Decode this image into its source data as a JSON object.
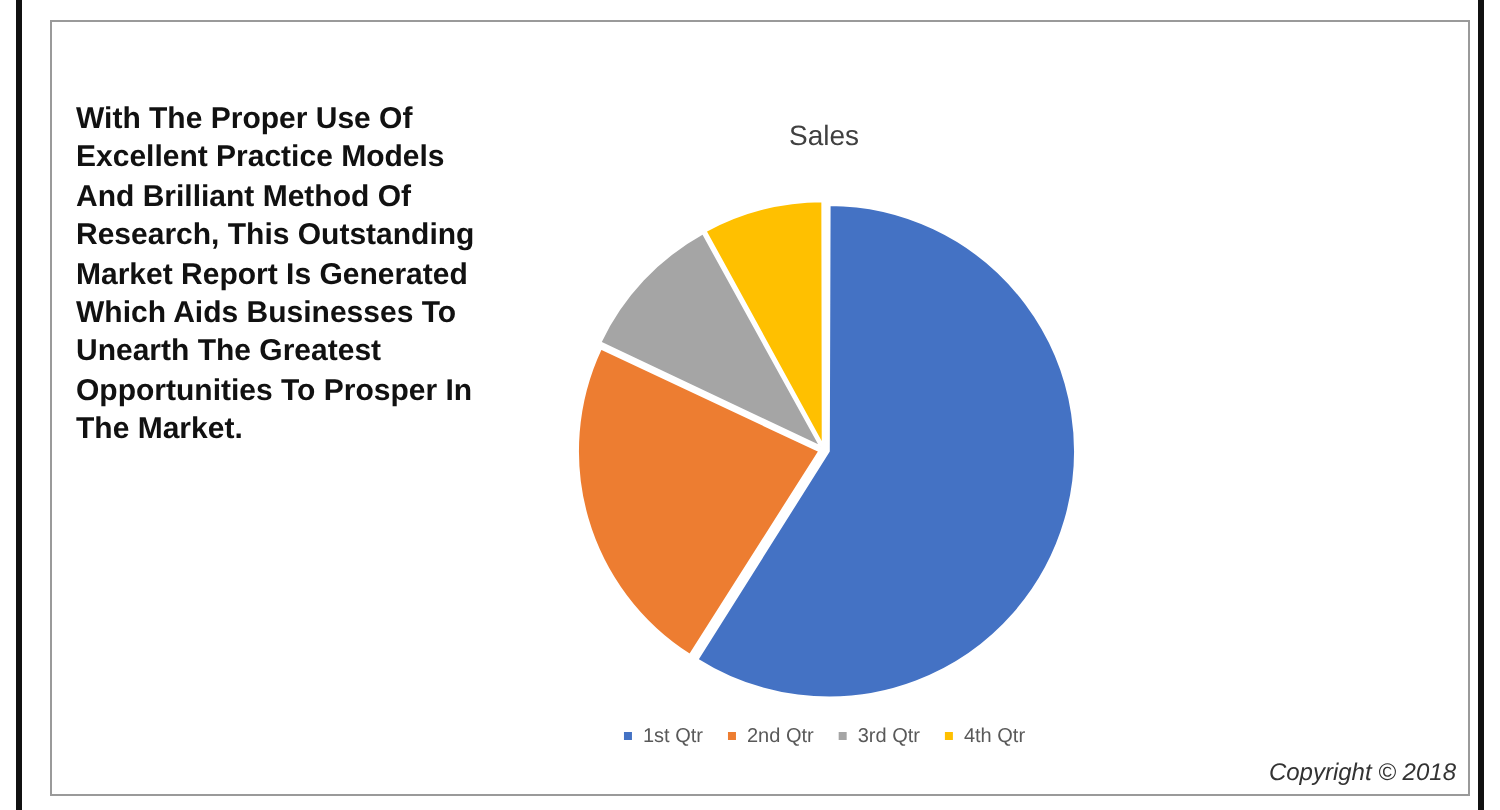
{
  "chart_data": {
    "type": "pie",
    "title": "Sales",
    "categories": [
      "1st Qtr",
      "2nd Qtr",
      "3rd Qtr",
      "4th Qtr"
    ],
    "values": [
      59,
      23,
      10,
      8
    ],
    "colors": [
      "#4472c4",
      "#ed7d31",
      "#a5a5a5",
      "#ffc000"
    ],
    "legend": "bottom",
    "annotations": [
      "With The Proper Use Of Excellent Practice Models And Brilliant Method Of Research, This Outstanding Market Report Is Generated Which Aids Businesses To Unearth The Greatest Opportunities To Prosper In The Market.",
      "Copyright © 2018"
    ]
  }
}
